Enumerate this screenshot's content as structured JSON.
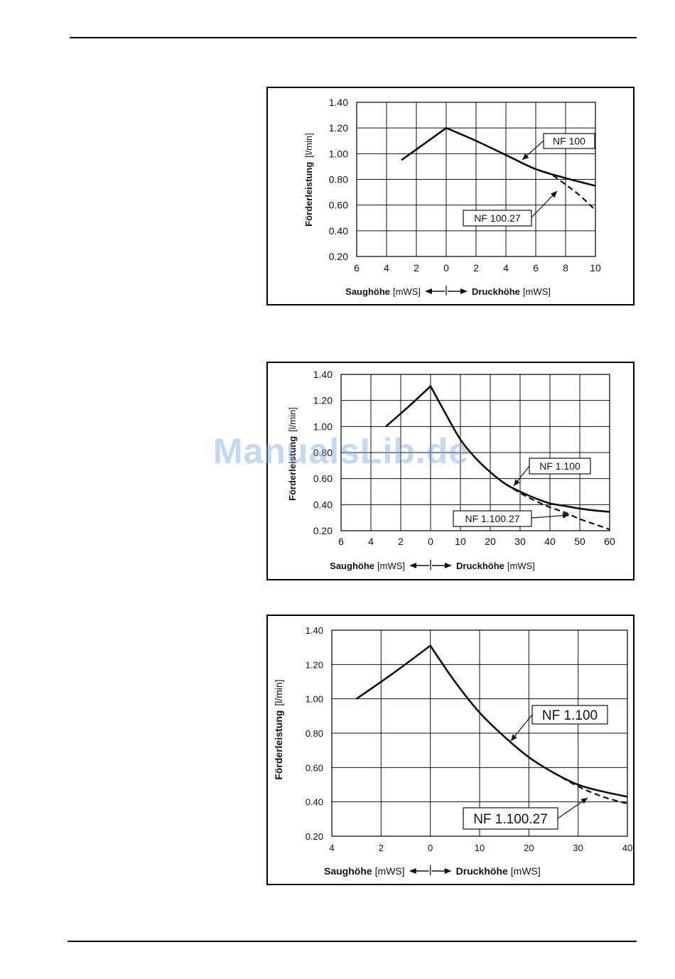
{
  "page": {
    "watermark": "ManualsLib.de"
  },
  "chart_data": [
    {
      "type": "line",
      "ylabel": "Förderleistung",
      "ylabel_unit": "[l/min]",
      "xlabel_left": "Saughöhe",
      "xlabel_left_unit": "[mWS]",
      "xlabel_right": "Druckhöhe",
      "xlabel_right_unit": "[mWS]",
      "x_tick_labels": [
        "6",
        "4",
        "2",
        "0",
        "2",
        "4",
        "6",
        "8",
        "10"
      ],
      "y_tick_labels": [
        "1.40",
        "1.20",
        "1.00",
        "0.80",
        "0.60",
        "0.40",
        "0.20"
      ],
      "ylim": [
        0.2,
        1.4
      ],
      "suction_range": [
        0,
        6
      ],
      "pressure_range": [
        0,
        10
      ],
      "grid": true,
      "series": [
        {
          "name": "NF 100",
          "style": "solid",
          "suction_points": [
            [
              3,
              0.95
            ],
            [
              0,
              1.2
            ]
          ],
          "pressure_points": [
            [
              0,
              1.2
            ],
            [
              2,
              1.1
            ],
            [
              4,
              0.99
            ],
            [
              6,
              0.88
            ],
            [
              8,
              0.81
            ],
            [
              10,
              0.75
            ]
          ]
        },
        {
          "name": "NF 100.27",
          "style": "dashed",
          "suction_points": [],
          "pressure_points": [
            [
              6,
              0.88
            ],
            [
              7,
              0.84
            ],
            [
              8,
              0.76
            ],
            [
              9,
              0.67
            ],
            [
              10,
              0.56
            ]
          ]
        }
      ]
    },
    {
      "type": "line",
      "ylabel": "Förderleistung",
      "ylabel_unit": "[l/min]",
      "xlabel_left": "Saughöhe",
      "xlabel_left_unit": "[mWS]",
      "xlabel_right": "Druckhöhe",
      "xlabel_right_unit": "[mWS]",
      "x_tick_labels": [
        "6",
        "4",
        "2",
        "0",
        "10",
        "20",
        "30",
        "40",
        "50",
        "60"
      ],
      "y_tick_labels": [
        "1.40",
        "1.20",
        "1.00",
        "0.80",
        "0.60",
        "0.40",
        "0.20"
      ],
      "ylim": [
        0.2,
        1.4
      ],
      "suction_range": [
        0,
        6
      ],
      "pressure_range": [
        0,
        60
      ],
      "grid": true,
      "series": [
        {
          "name": "NF 1.100",
          "style": "solid",
          "suction_points": [
            [
              3,
              1.0
            ],
            [
              1.5,
              1.15
            ],
            [
              0,
              1.31
            ]
          ],
          "pressure_points": [
            [
              0,
              1.31
            ],
            [
              5,
              1.1
            ],
            [
              10,
              0.9
            ],
            [
              15,
              0.76
            ],
            [
              20,
              0.65
            ],
            [
              25,
              0.56
            ],
            [
              30,
              0.5
            ],
            [
              35,
              0.45
            ],
            [
              40,
              0.41
            ],
            [
              45,
              0.39
            ],
            [
              50,
              0.37
            ],
            [
              55,
              0.355
            ],
            [
              60,
              0.345
            ]
          ]
        },
        {
          "name": "NF 1.100.27",
          "style": "dashed",
          "suction_points": [],
          "pressure_points": [
            [
              25,
              0.56
            ],
            [
              30,
              0.49
            ],
            [
              35,
              0.43
            ],
            [
              40,
              0.38
            ],
            [
              45,
              0.34
            ],
            [
              50,
              0.29
            ],
            [
              55,
              0.25
            ],
            [
              60,
              0.21
            ]
          ]
        }
      ]
    },
    {
      "type": "line",
      "ylabel": "Förderleistung",
      "ylabel_unit": "[l/min]",
      "xlabel_left": "Saughöhe",
      "xlabel_left_unit": "[mWS]",
      "xlabel_right": "Druckhöhe",
      "xlabel_right_unit": "[mWS]",
      "x_tick_labels": [
        "4",
        "2",
        "0",
        "10",
        "20",
        "30",
        "40"
      ],
      "y_tick_labels": [
        "1.40",
        "1.20",
        "1.00",
        "0.80",
        "0.60",
        "0.40",
        "0.20"
      ],
      "ylim": [
        0.2,
        1.4
      ],
      "suction_range": [
        0,
        4
      ],
      "pressure_range": [
        0,
        40
      ],
      "grid": true,
      "series": [
        {
          "name": "NF 1.100",
          "style": "solid",
          "suction_points": [
            [
              3,
              1.0
            ],
            [
              1.5,
              1.15
            ],
            [
              0,
              1.31
            ]
          ],
          "pressure_points": [
            [
              0,
              1.31
            ],
            [
              5,
              1.1
            ],
            [
              10,
              0.92
            ],
            [
              15,
              0.78
            ],
            [
              20,
              0.66
            ],
            [
              25,
              0.57
            ],
            [
              30,
              0.5
            ],
            [
              35,
              0.46
            ],
            [
              40,
              0.43
            ]
          ]
        },
        {
          "name": "NF 1.100.27",
          "style": "dashed",
          "suction_points": [],
          "pressure_points": [
            [
              25,
              0.57
            ],
            [
              30,
              0.49
            ],
            [
              35,
              0.43
            ],
            [
              40,
              0.39
            ]
          ]
        }
      ]
    }
  ]
}
